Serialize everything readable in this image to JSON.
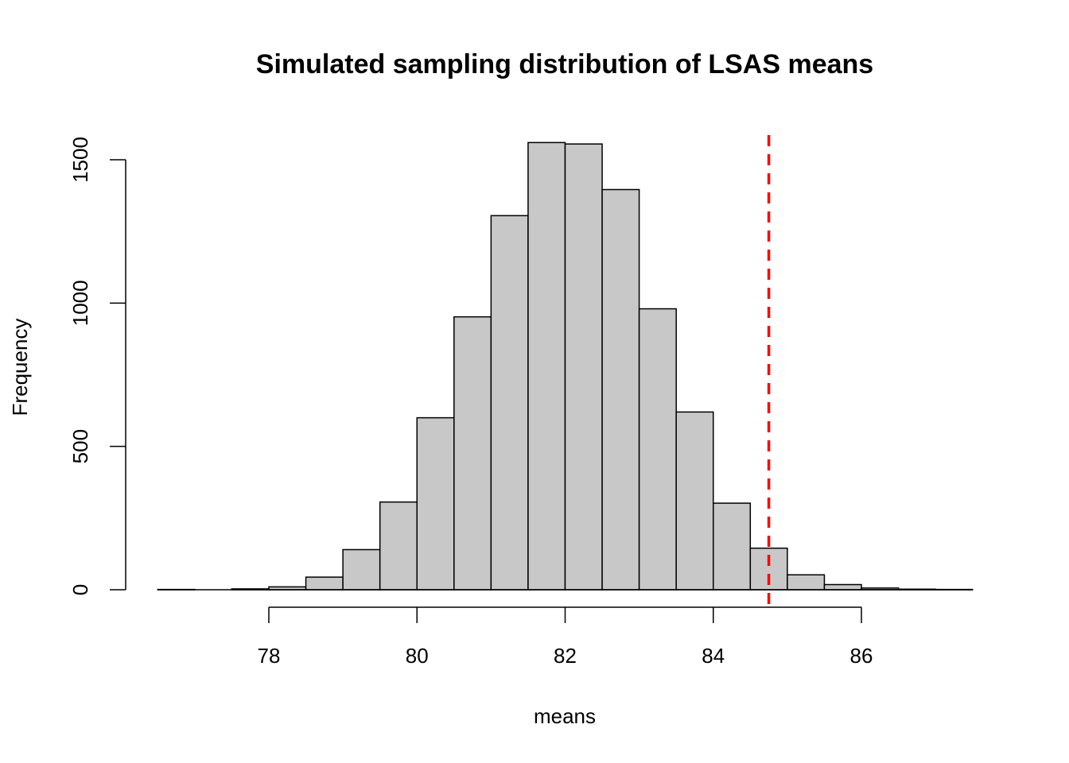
{
  "chart_data": {
    "type": "bar",
    "title": "Simulated sampling distribution of LSAS means",
    "xlabel": "means",
    "ylabel": "Frequency",
    "bin_width": 0.5,
    "bin_starts": [
      76.5,
      77.0,
      77.5,
      78.0,
      78.5,
      79.0,
      79.5,
      80.0,
      80.5,
      81.0,
      81.5,
      82.0,
      82.5,
      83.0,
      83.5,
      84.0,
      84.5,
      85.0,
      85.5,
      86.0,
      86.5,
      87.0
    ],
    "values": [
      1,
      0,
      3,
      10,
      44,
      140,
      306,
      600,
      952,
      1305,
      1560,
      1555,
      1396,
      980,
      620,
      302,
      145,
      52,
      18,
      6,
      2,
      1
    ],
    "xlim": [
      76.5,
      87.5
    ],
    "ylim": [
      0,
      1580
    ],
    "x_ticks": [
      78,
      80,
      82,
      84,
      86
    ],
    "y_ticks": [
      0,
      500,
      1000,
      1500
    ],
    "reference_line": {
      "x": 84.75,
      "color": "#ff0000",
      "style": "dashed"
    },
    "bar_color": "#c8c8c8",
    "grid": false,
    "legend": "none"
  }
}
